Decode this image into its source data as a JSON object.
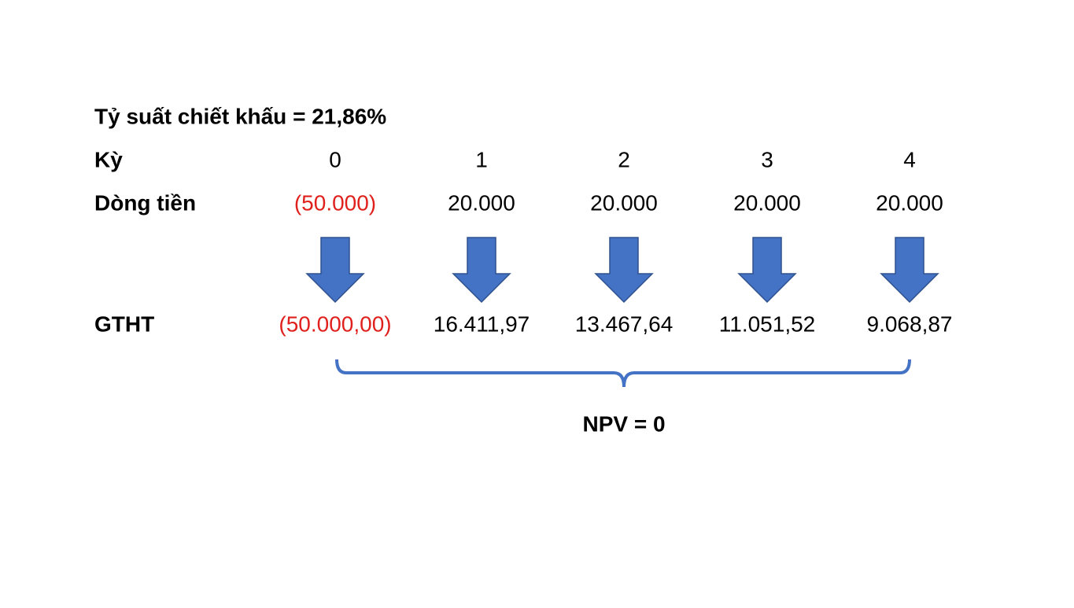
{
  "title": "Tỷ suất chiết khấu = 21,86%",
  "rows": {
    "period": {
      "label": "Kỳ",
      "cells": [
        "0",
        "1",
        "2",
        "3",
        "4"
      ]
    },
    "cash_flow": {
      "label": "Dòng tiền",
      "cells": [
        "(50.000)",
        "20.000",
        "20.000",
        "20.000",
        "20.000"
      ]
    },
    "present_value": {
      "label": "GTHT",
      "cells": [
        "(50.000,00)",
        "16.411,97",
        "13.467,64",
        "11.051,52",
        "9.068,87"
      ]
    }
  },
  "npv": "NPV = 0"
}
